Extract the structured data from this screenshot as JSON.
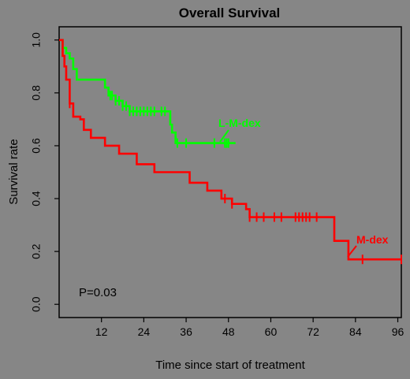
{
  "chart_data": {
    "type": "line",
    "title": "Overall Survival",
    "xlabel": "Time since start of treatment",
    "ylabel": "Survival rate",
    "xlim": [
      0,
      97
    ],
    "ylim": [
      -0.05,
      1.05
    ],
    "xticks": [
      12,
      24,
      36,
      48,
      60,
      72,
      84,
      96
    ],
    "yticks": [
      0.0,
      0.2,
      0.4,
      0.6,
      0.8,
      1.0
    ],
    "xtick_labels": [
      "12",
      "24",
      "36",
      "48",
      "60",
      "72",
      "84",
      "96"
    ],
    "ytick_labels": [
      "0.0",
      "0.2",
      "0.4",
      "0.6",
      "0.8",
      "1.0"
    ],
    "grid": false,
    "annotation": "P=0.03",
    "series": [
      {
        "name": "L-M-dex",
        "color": "#00ff00",
        "step_points": [
          [
            0,
            1.0
          ],
          [
            1,
            0.97
          ],
          [
            2,
            0.95
          ],
          [
            3,
            0.93
          ],
          [
            4,
            0.89
          ],
          [
            5,
            0.85
          ],
          [
            9,
            0.85
          ],
          [
            13,
            0.82
          ],
          [
            14,
            0.79
          ],
          [
            16,
            0.77
          ],
          [
            18,
            0.75
          ],
          [
            20,
            0.73
          ],
          [
            23,
            0.73
          ],
          [
            31,
            0.73
          ],
          [
            31.5,
            0.68
          ],
          [
            32,
            0.65
          ],
          [
            33,
            0.61
          ],
          [
            50,
            0.61
          ]
        ],
        "censor_x": [
          14.5,
          15,
          16,
          17,
          18,
          19,
          20,
          21,
          22,
          23,
          24,
          25,
          26,
          27,
          29,
          30,
          33.5,
          36,
          44,
          47,
          47.5,
          48
        ]
      },
      {
        "name": "M-dex",
        "color": "#ff0000",
        "step_points": [
          [
            0,
            1.0
          ],
          [
            1,
            0.94
          ],
          [
            1.5,
            0.9
          ],
          [
            2,
            0.85
          ],
          [
            3,
            0.76
          ],
          [
            4,
            0.71
          ],
          [
            6,
            0.7
          ],
          [
            7,
            0.66
          ],
          [
            9,
            0.63
          ],
          [
            13,
            0.6
          ],
          [
            17,
            0.57
          ],
          [
            22,
            0.53
          ],
          [
            27,
            0.5
          ],
          [
            36,
            0.5
          ],
          [
            37,
            0.46
          ],
          [
            42,
            0.43
          ],
          [
            46,
            0.4
          ],
          [
            49,
            0.38
          ],
          [
            53,
            0.36
          ],
          [
            54,
            0.33
          ],
          [
            77,
            0.33
          ],
          [
            78,
            0.24
          ],
          [
            82,
            0.17
          ],
          [
            97,
            0.17
          ]
        ],
        "censor_x": [
          3,
          47,
          49,
          54,
          56,
          58,
          61,
          63,
          67,
          68,
          69,
          70,
          71,
          73,
          86,
          97
        ]
      }
    ]
  }
}
